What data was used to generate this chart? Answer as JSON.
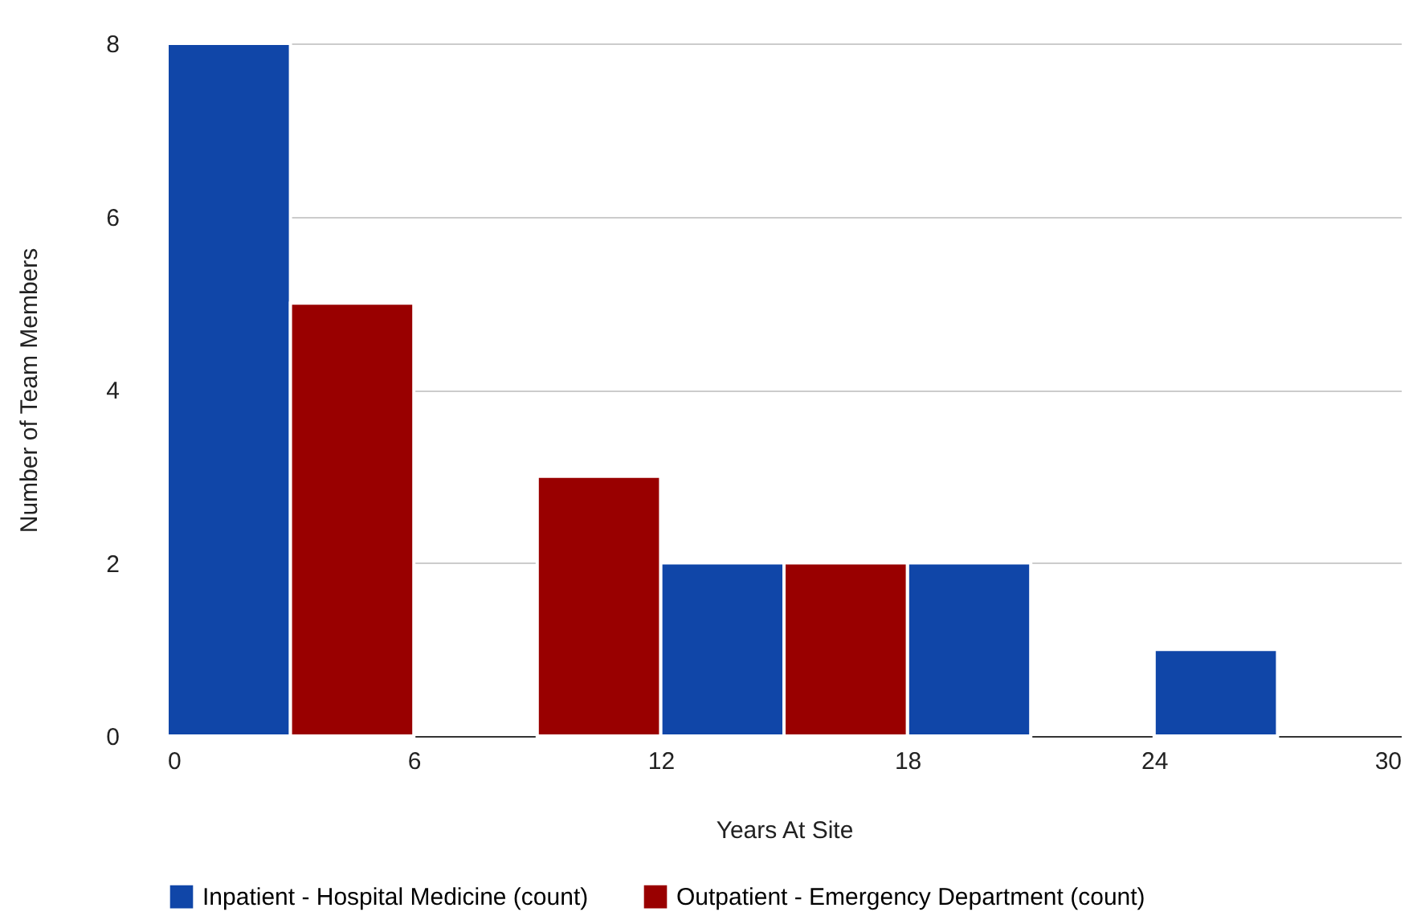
{
  "chart_data": {
    "type": "histogram",
    "xlabel": "Years At Site",
    "ylabel": "Number of Team Members",
    "bins": [
      0,
      3,
      6,
      9,
      12,
      15,
      18,
      21,
      24,
      27,
      30
    ],
    "series": [
      {
        "name": "Inpatient - Hospital Medicine (count)",
        "color": "#1046a8",
        "values": [
          8,
          0,
          0,
          0,
          2,
          0,
          2,
          0,
          1,
          0
        ]
      },
      {
        "name": "Outpatient - Emergency Department (count)",
        "color": "#990000",
        "values": [
          0,
          5,
          0,
          3,
          0,
          2,
          0,
          0,
          0,
          0
        ]
      }
    ],
    "xlim": [
      0,
      30
    ],
    "xticks": [
      0,
      6,
      12,
      18,
      24,
      30
    ],
    "ylim": [
      0,
      8
    ],
    "yticks": [
      0,
      2,
      4,
      6,
      8
    ],
    "grid": "y",
    "legend": "bottom"
  }
}
